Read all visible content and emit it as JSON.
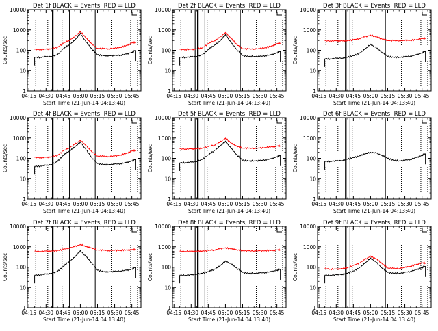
{
  "colors": {
    "events": "#000000",
    "lld": "#ff0000",
    "background": "#ffffff"
  },
  "shared": {
    "xlabel": "Start Time (21-Jun-14 04:13:40)",
    "ylabel": "Counts/sec",
    "x_ticks": [
      "04:15",
      "04:30",
      "04:45",
      "05:00",
      "05:15",
      "05:30",
      "05:45"
    ],
    "y_ticks": [
      "1",
      "10",
      "100",
      "1000",
      "10000"
    ]
  },
  "panels": [
    {
      "title": "Det 1f BLACK = Events, RED = LLD"
    },
    {
      "title": "Det 2f BLACK = Events, RED = LLD"
    },
    {
      "title": "Det 3f BLACK = Events, RED = LLD"
    },
    {
      "title": "Det 4f BLACK = Events, RED = LLD"
    },
    {
      "title": "Det 5f BLACK = Events, RED = LLD"
    },
    {
      "title": "Det 6f BLACK = Events, RED = LLD"
    },
    {
      "title": "Det 7f BLACK = Events, RED = LLD"
    },
    {
      "title": "Det 8f BLACK = Events, RED = LLD"
    },
    {
      "title": "Det 9f BLACK = Events, RED = LLD"
    }
  ],
  "chart_data": [
    {
      "type": "line",
      "title": "Det 1f BLACK = Events, RED = LLD",
      "xlabel": "Start Time (21-Jun-14 04:13:40)",
      "ylabel": "Counts/sec",
      "yscale": "log",
      "ylim": [
        1,
        10000
      ],
      "xlim": [
        "04:13:40",
        "05:53:00"
      ],
      "grid": false,
      "x": [
        "04:20",
        "04:25",
        "04:30",
        "04:35",
        "04:40",
        "04:45",
        "04:50",
        "04:55",
        "05:00",
        "05:05",
        "05:10",
        "05:15",
        "05:20",
        "05:25",
        "05:30",
        "05:35",
        "05:40",
        "05:45",
        "05:48"
      ],
      "series": [
        {
          "name": "Events",
          "color": "black",
          "values": [
            45,
            45,
            48,
            50,
            60,
            120,
            180,
            300,
            700,
            250,
            120,
            60,
            55,
            55,
            55,
            58,
            65,
            80,
            100
          ]
        },
        {
          "name": "LLD",
          "color": "red",
          "values": [
            110,
            110,
            115,
            120,
            140,
            220,
            300,
            450,
            850,
            400,
            200,
            125,
            120,
            120,
            125,
            140,
            170,
            230,
            250
          ]
        }
      ]
    },
    {
      "type": "line",
      "title": "Det 2f BLACK = Events, RED = LLD",
      "xlabel": "Start Time (21-Jun-14 04:13:40)",
      "ylabel": "Counts/sec",
      "yscale": "log",
      "ylim": [
        1,
        10000
      ],
      "xlim": [
        "04:13:40",
        "05:53:00"
      ],
      "grid": false,
      "x": [
        "04:20",
        "04:25",
        "04:30",
        "04:35",
        "04:40",
        "04:45",
        "04:50",
        "04:55",
        "05:00",
        "05:05",
        "05:10",
        "05:15",
        "05:20",
        "05:25",
        "05:30",
        "05:35",
        "05:40",
        "05:45",
        "05:48"
      ],
      "series": [
        {
          "name": "Events",
          "color": "black",
          "values": [
            45,
            45,
            48,
            50,
            60,
            110,
            170,
            270,
            600,
            230,
            110,
            55,
            50,
            50,
            50,
            55,
            60,
            75,
            90
          ]
        },
        {
          "name": "LLD",
          "color": "red",
          "values": [
            110,
            110,
            112,
            118,
            135,
            210,
            290,
            420,
            750,
            380,
            190,
            120,
            115,
            115,
            120,
            135,
            160,
            210,
            230
          ]
        }
      ]
    },
    {
      "type": "line",
      "title": "Det 3f BLACK = Events, RED = LLD",
      "xlabel": "Start Time (21-Jun-14 04:13:40)",
      "ylabel": "Counts/sec",
      "yscale": "log",
      "ylim": [
        1,
        10000
      ],
      "xlim": [
        "04:13:40",
        "05:53:00"
      ],
      "grid": false,
      "x": [
        "04:20",
        "04:25",
        "04:30",
        "04:35",
        "04:40",
        "04:45",
        "04:50",
        "04:55",
        "05:00",
        "05:05",
        "05:10",
        "05:15",
        "05:20",
        "05:25",
        "05:30",
        "05:35",
        "05:40",
        "05:45",
        "05:48"
      ],
      "series": [
        {
          "name": "Events",
          "color": "black",
          "values": [
            38,
            38,
            40,
            42,
            45,
            55,
            70,
            110,
            200,
            130,
            80,
            50,
            45,
            45,
            48,
            52,
            60,
            75,
            90
          ]
        },
        {
          "name": "LLD",
          "color": "red",
          "values": [
            290,
            290,
            290,
            295,
            300,
            330,
            380,
            450,
            560,
            450,
            360,
            300,
            295,
            295,
            300,
            310,
            330,
            370,
            400
          ]
        }
      ]
    },
    {
      "type": "line",
      "title": "Det 4f BLACK = Events, RED = LLD",
      "xlabel": "Start Time (21-Jun-14 04:13:40)",
      "ylabel": "Counts/sec",
      "yscale": "log",
      "ylim": [
        1,
        10000
      ],
      "xlim": [
        "04:13:40",
        "05:53:00"
      ],
      "grid": false,
      "x": [
        "04:20",
        "04:25",
        "04:30",
        "04:35",
        "04:40",
        "04:45",
        "04:50",
        "04:55",
        "05:00",
        "05:05",
        "05:10",
        "05:15",
        "05:20",
        "05:25",
        "05:30",
        "05:35",
        "05:40",
        "05:45",
        "05:48"
      ],
      "series": [
        {
          "name": "Events",
          "color": "black",
          "values": [
            40,
            42,
            45,
            50,
            70,
            140,
            220,
            350,
            650,
            260,
            110,
            55,
            50,
            50,
            52,
            55,
            62,
            75,
            90
          ]
        },
        {
          "name": "LLD",
          "color": "red",
          "values": [
            110,
            110,
            112,
            120,
            140,
            230,
            320,
            480,
            780,
            420,
            210,
            130,
            125,
            125,
            130,
            145,
            175,
            230,
            250
          ]
        }
      ]
    },
    {
      "type": "line",
      "title": "Det 5f BLACK = Events, RED = LLD",
      "xlabel": "Start Time (21-Jun-14 04:13:40)",
      "ylabel": "Counts/sec",
      "yscale": "log",
      "ylim": [
        1,
        10000
      ],
      "xlim": [
        "04:13:40",
        "05:53:00"
      ],
      "grid": false,
      "x": [
        "04:20",
        "04:25",
        "04:30",
        "04:35",
        "04:40",
        "04:45",
        "04:50",
        "04:55",
        "05:00",
        "05:05",
        "05:10",
        "05:15",
        "05:20",
        "05:25",
        "05:30",
        "05:35",
        "05:40",
        "05:45",
        "05:48"
      ],
      "series": [
        {
          "name": "Events",
          "color": "black",
          "values": [
            60,
            62,
            65,
            70,
            90,
            150,
            230,
            380,
            700,
            300,
            150,
            80,
            75,
            75,
            78,
            85,
            95,
            120,
            140
          ]
        },
        {
          "name": "LLD",
          "color": "red",
          "values": [
            290,
            290,
            292,
            300,
            320,
            380,
            450,
            600,
            980,
            560,
            390,
            320,
            310,
            310,
            320,
            340,
            370,
            400,
            420
          ]
        }
      ]
    },
    {
      "type": "line",
      "title": "Det 6f BLACK = Events, RED = LLD",
      "xlabel": "Start Time (21-Jun-14 04:13:40)",
      "ylabel": "Counts/sec",
      "yscale": "log",
      "ylim": [
        1,
        10000
      ],
      "xlim": [
        "04:13:40",
        "05:53:00"
      ],
      "grid": false,
      "x": [
        "04:20",
        "04:25",
        "04:30",
        "04:35",
        "04:40",
        "04:45",
        "04:50",
        "04:55",
        "05:00",
        "05:05",
        "05:10",
        "05:15",
        "05:20",
        "05:25",
        "05:30",
        "05:35",
        "05:40",
        "05:45",
        "05:48"
      ],
      "series": [
        {
          "name": "Events",
          "color": "black",
          "values": [
            70,
            72,
            75,
            80,
            90,
            110,
            130,
            160,
            200,
            180,
            140,
            100,
            80,
            75,
            80,
            90,
            110,
            140,
            170
          ]
        }
      ]
    },
    {
      "type": "line",
      "title": "Det 7f BLACK = Events, RED = LLD",
      "xlabel": "Start Time (21-Jun-14 04:13:40)",
      "ylabel": "Counts/sec",
      "yscale": "log",
      "ylim": [
        1,
        10000
      ],
      "xlim": [
        "04:13:40",
        "05:53:00"
      ],
      "grid": false,
      "x": [
        "04:20",
        "04:25",
        "04:30",
        "04:35",
        "04:40",
        "04:45",
        "04:50",
        "04:55",
        "05:00",
        "05:05",
        "05:10",
        "05:15",
        "05:20",
        "05:25",
        "05:30",
        "05:35",
        "05:40",
        "05:45",
        "05:48"
      ],
      "series": [
        {
          "name": "Events",
          "color": "black",
          "values": [
            40,
            42,
            45,
            50,
            60,
            110,
            180,
            300,
            650,
            320,
            160,
            70,
            60,
            60,
            62,
            65,
            70,
            80,
            100
          ]
        },
        {
          "name": "LLD",
          "color": "red",
          "values": [
            600,
            600,
            610,
            620,
            650,
            750,
            850,
            1000,
            1300,
            1000,
            850,
            700,
            660,
            660,
            660,
            670,
            690,
            720,
            750
          ]
        }
      ]
    },
    {
      "type": "line",
      "title": "Det 8f BLACK = Events, RED = LLD",
      "xlabel": "Start Time (21-Jun-14 04:13:40)",
      "ylabel": "Counts/sec",
      "yscale": "log",
      "ylim": [
        1,
        10000
      ],
      "xlim": [
        "04:13:40",
        "05:53:00"
      ],
      "grid": false,
      "x": [
        "04:20",
        "04:25",
        "04:30",
        "04:35",
        "04:40",
        "04:45",
        "04:50",
        "04:55",
        "05:00",
        "05:05",
        "05:10",
        "05:15",
        "05:20",
        "05:25",
        "05:30",
        "05:35",
        "05:40",
        "05:45",
        "05:48"
      ],
      "series": [
        {
          "name": "Events",
          "color": "black",
          "values": [
            40,
            40,
            42,
            45,
            50,
            60,
            75,
            110,
            200,
            140,
            90,
            55,
            50,
            50,
            52,
            55,
            60,
            70,
            80
          ]
        },
        {
          "name": "LLD",
          "color": "red",
          "values": [
            600,
            600,
            600,
            610,
            620,
            650,
            700,
            780,
            900,
            780,
            700,
            640,
            620,
            620,
            630,
            640,
            660,
            690,
            720
          ]
        }
      ]
    },
    {
      "type": "line",
      "title": "Det 9f BLACK = Events, RED = LLD",
      "xlabel": "Start Time (21-Jun-14 04:13:40)",
      "ylabel": "Counts/sec",
      "yscale": "log",
      "ylim": [
        1,
        10000
      ],
      "xlim": [
        "04:13:40",
        "05:53:00"
      ],
      "grid": false,
      "x": [
        "04:20",
        "04:25",
        "04:30",
        "04:35",
        "04:40",
        "04:45",
        "04:50",
        "04:55",
        "05:00",
        "05:05",
        "05:10",
        "05:15",
        "05:20",
        "05:25",
        "05:30",
        "05:35",
        "05:40",
        "05:45",
        "05:48"
      ],
      "series": [
        {
          "name": "Events",
          "color": "black",
          "values": [
            40,
            40,
            42,
            45,
            50,
            65,
            90,
            150,
            280,
            170,
            90,
            55,
            50,
            50,
            55,
            62,
            75,
            95,
            110
          ]
        },
        {
          "name": "LLD",
          "color": "red",
          "values": [
            85,
            80,
            80,
            85,
            95,
            120,
            160,
            230,
            350,
            250,
            150,
            90,
            85,
            85,
            95,
            110,
            135,
            160,
            160
          ]
        }
      ]
    }
  ]
}
